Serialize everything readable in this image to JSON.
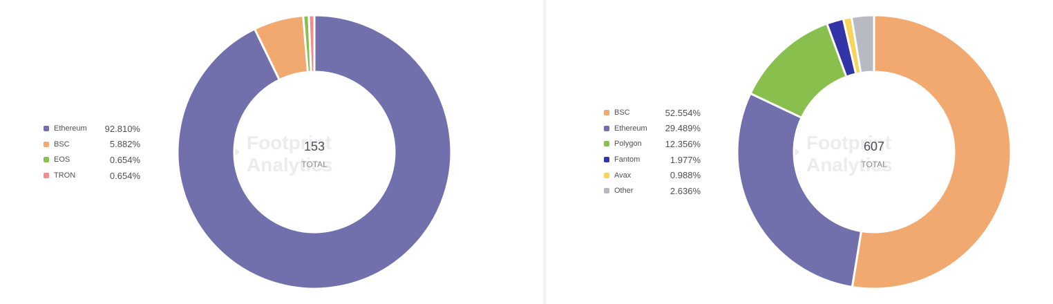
{
  "chart_data": [
    {
      "type": "pie",
      "donut": true,
      "categories": [
        "Ethereum",
        "BSC",
        "EOS",
        "TRON"
      ],
      "values": [
        92.81,
        5.882,
        0.654,
        0.654
      ],
      "labels": [
        "92.810%",
        "5.882%",
        "0.654%",
        "0.654%"
      ],
      "colors": [
        "#7170ad",
        "#f2a970",
        "#88bf4d",
        "#ef8c8c"
      ],
      "total": "153",
      "total_label": "TOTAL",
      "legend_position": "left"
    },
    {
      "type": "pie",
      "donut": true,
      "categories": [
        "BSC",
        "Ethereum",
        "Polygon",
        "Fantom",
        "Avax",
        "Other"
      ],
      "values": [
        52.554,
        29.489,
        12.356,
        1.977,
        0.988,
        2.636
      ],
      "labels": [
        "52.554%",
        "29.489%",
        "12.356%",
        "1.977%",
        "0.988%",
        "2.636%"
      ],
      "colors": [
        "#f2a970",
        "#7170ad",
        "#88bf4d",
        "#3234a8",
        "#f9d45c",
        "#b8bac3"
      ],
      "total": "607",
      "total_label": "TOTAL",
      "legend_position": "left"
    }
  ],
  "watermark": {
    "line1": "Footprint",
    "line2": "Analytics",
    "icon": "footprint-logo-icon"
  }
}
